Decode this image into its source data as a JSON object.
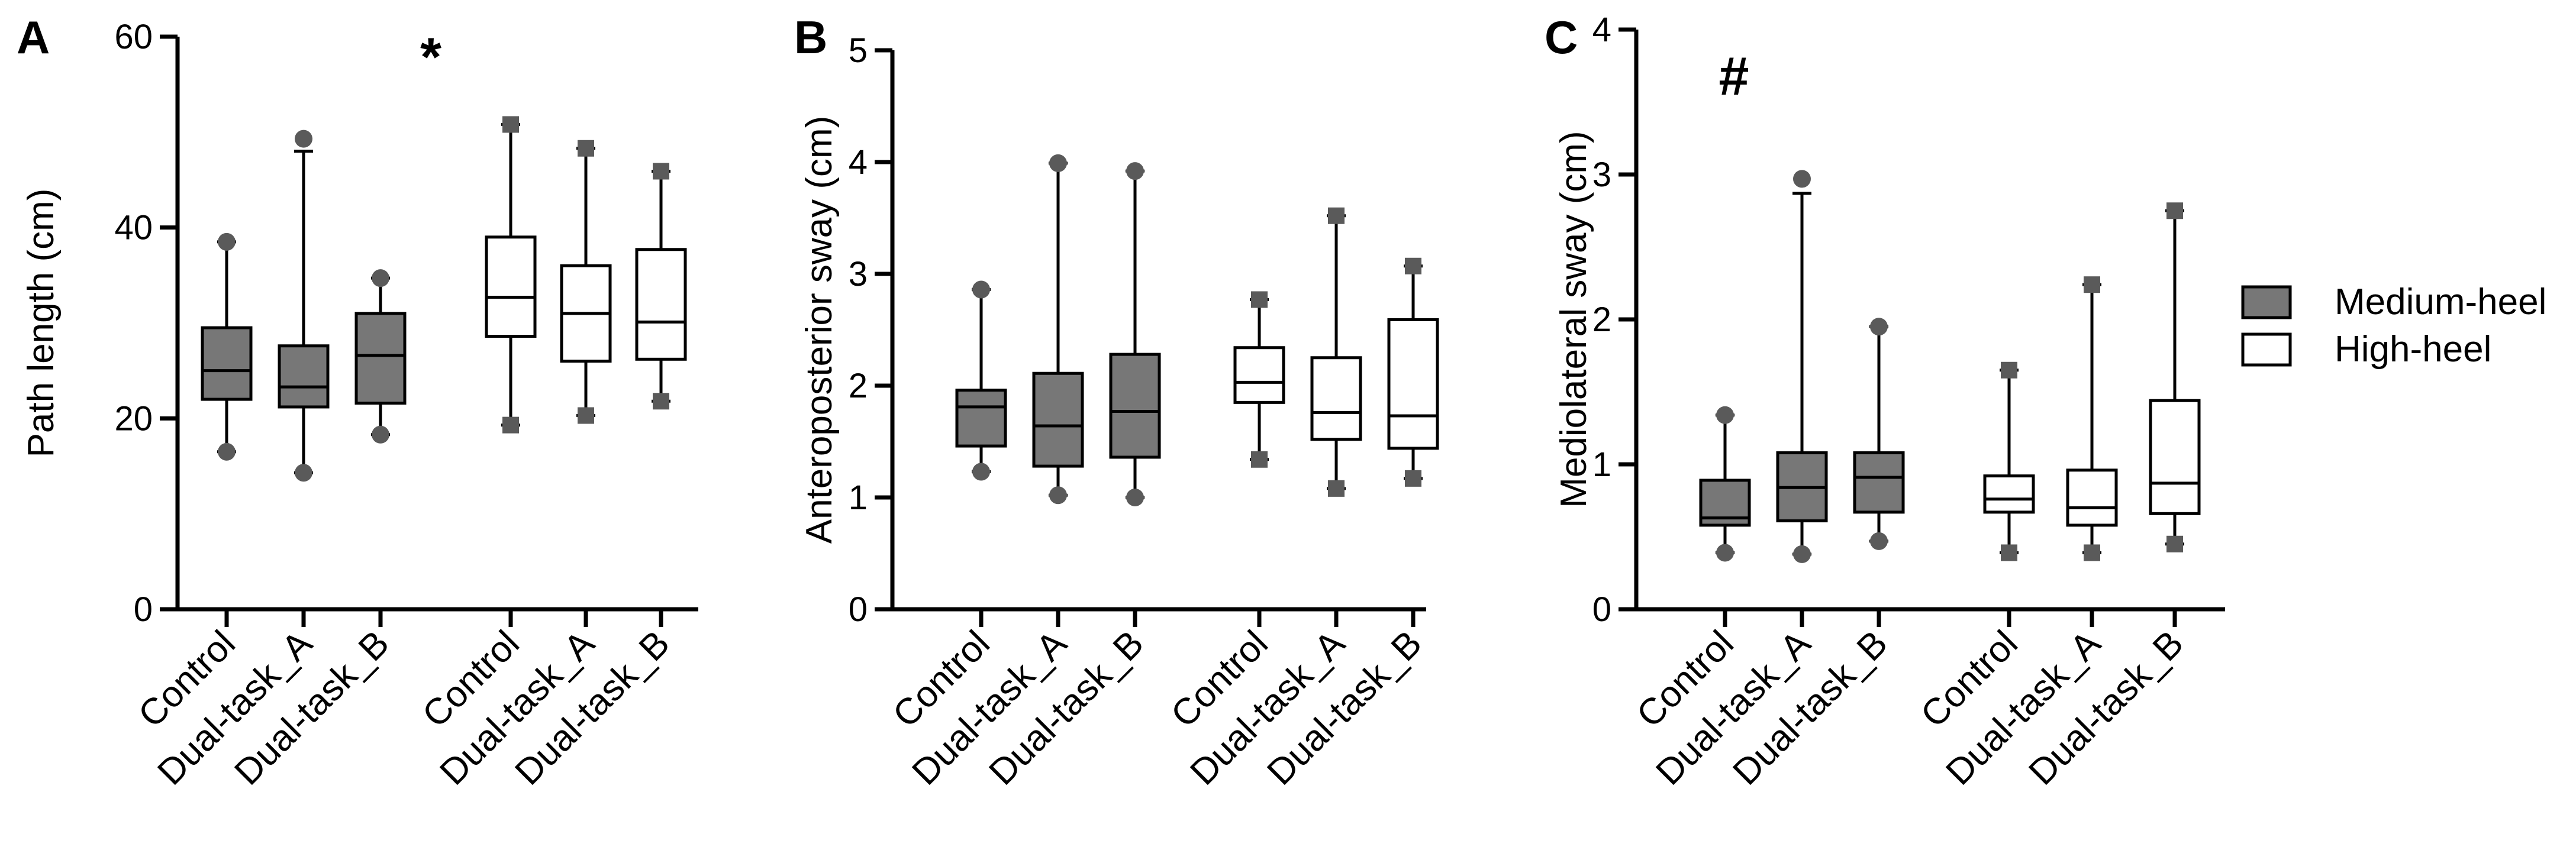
{
  "figure_type": "three-panel box plot",
  "colors": {
    "medium": "#777777",
    "high": "#ffffff",
    "line": "#000000",
    "marker": "#5a5a5a"
  },
  "legend": {
    "placement": "right",
    "items": [
      {
        "label": "Medium-heel",
        "color": "#777777"
      },
      {
        "label": "High-heel",
        "color": "#ffffff"
      }
    ]
  },
  "chart_data": [
    {
      "type": "box",
      "panel": "A",
      "ylabel": "Path length (cm)",
      "ylim": [
        0,
        60
      ],
      "yticks": [
        0,
        20,
        40,
        60
      ],
      "annotation": "*",
      "categories": [
        "Control",
        "Dual-task_A",
        "Dual-task_B",
        "Control",
        "Dual-task_A",
        "Dual-task_B"
      ],
      "groups": [
        "Medium-heel",
        "Medium-heel",
        "Medium-heel",
        "High-heel",
        "High-heel",
        "High-heel"
      ],
      "boxes": [
        {
          "min": 16.5,
          "q1": 22.0,
          "median": 25.0,
          "q3": 29.5,
          "max": 38.5
        },
        {
          "min": 14.3,
          "q1": 21.2,
          "median": 23.3,
          "q3": 27.6,
          "max": 48.0,
          "outlier": 49.3
        },
        {
          "min": 18.3,
          "q1": 21.6,
          "median": 26.6,
          "q3": 31.0,
          "max": 34.7
        },
        {
          "min": 19.3,
          "q1": 28.6,
          "median": 32.7,
          "q3": 39.0,
          "max": 50.8
        },
        {
          "min": 20.3,
          "q1": 26.0,
          "median": 31.0,
          "q3": 36.0,
          "max": 48.3
        },
        {
          "min": 21.8,
          "q1": 26.2,
          "median": 30.1,
          "q3": 37.7,
          "max": 45.9
        }
      ]
    },
    {
      "type": "box",
      "panel": "B",
      "ylabel": "Anteroposterior sway (cm)",
      "ylim": [
        0,
        5
      ],
      "yticks": [
        0,
        1,
        2,
        3,
        4,
        5
      ],
      "annotation": "",
      "categories": [
        "Control",
        "Dual-task_A",
        "Dual-task_B",
        "Control",
        "Dual-task_A",
        "Dual-task_B"
      ],
      "groups": [
        "Medium-heel",
        "Medium-heel",
        "Medium-heel",
        "High-heel",
        "High-heel",
        "High-heel"
      ],
      "boxes": [
        {
          "min": 1.23,
          "q1": 1.46,
          "median": 1.81,
          "q3": 1.96,
          "max": 2.86
        },
        {
          "min": 1.02,
          "q1": 1.28,
          "median": 1.64,
          "q3": 2.11,
          "max": 3.99
        },
        {
          "min": 1.0,
          "q1": 1.36,
          "median": 1.77,
          "q3": 2.28,
          "max": 3.92
        },
        {
          "min": 1.34,
          "q1": 1.85,
          "median": 2.03,
          "q3": 2.34,
          "max": 2.77
        },
        {
          "min": 1.08,
          "q1": 1.52,
          "median": 1.76,
          "q3": 2.25,
          "max": 3.52
        },
        {
          "min": 1.17,
          "q1": 1.44,
          "median": 1.73,
          "q3": 2.59,
          "max": 3.07
        }
      ]
    },
    {
      "type": "box",
      "panel": "C",
      "ylabel": "Mediolateral sway (cm)",
      "ylim": [
        0,
        4
      ],
      "yticks": [
        0,
        1,
        2,
        3,
        4
      ],
      "annotation": "#",
      "categories": [
        "Control",
        "Dual-task_A",
        "Dual-task_B",
        "Control",
        "Dual-task_A",
        "Dual-task_B"
      ],
      "groups": [
        "Medium-heel",
        "Medium-heel",
        "Medium-heel",
        "High-heel",
        "High-heel",
        "High-heel"
      ],
      "boxes": [
        {
          "min": 0.39,
          "q1": 0.58,
          "median": 0.63,
          "q3": 0.89,
          "max": 1.34
        },
        {
          "min": 0.38,
          "q1": 0.61,
          "median": 0.84,
          "q3": 1.08,
          "max": 2.87,
          "outlier": 2.97
        },
        {
          "min": 0.47,
          "q1": 0.67,
          "median": 0.91,
          "q3": 1.08,
          "max": 1.95
        },
        {
          "min": 0.39,
          "q1": 0.67,
          "median": 0.76,
          "q3": 0.92,
          "max": 1.65
        },
        {
          "min": 0.39,
          "q1": 0.58,
          "median": 0.7,
          "q3": 0.96,
          "max": 2.24
        },
        {
          "min": 0.45,
          "q1": 0.66,
          "median": 0.87,
          "q3": 1.44,
          "max": 2.75
        }
      ]
    }
  ]
}
